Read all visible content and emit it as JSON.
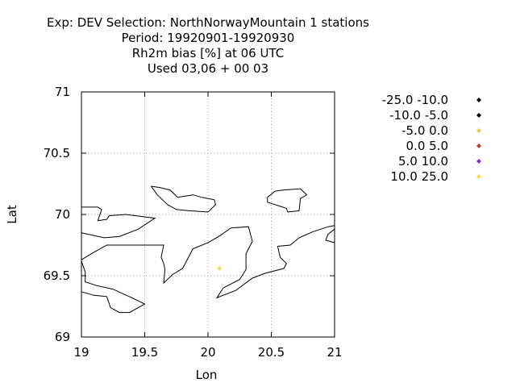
{
  "title_lines": [
    "Exp: DEV   Selection: NorthNorwayMountain       1 stations",
    "Period: 19920901-19920930",
    "Rh2m bias [%] at  06 UTC",
    "Used  03,06  + 00 03"
  ],
  "axes": {
    "xlabel": "Lon",
    "ylabel": "Lat",
    "xlim": [
      19,
      21
    ],
    "ylim": [
      69,
      71
    ],
    "xticks": [
      "19",
      "19.5",
      "20",
      "20.5",
      "21"
    ],
    "yticks": [
      "69",
      "69.5",
      "70",
      "70.5",
      "71"
    ],
    "grid": true
  },
  "legend": {
    "placement": "right",
    "items": [
      {
        "label": "-25.0 -10.0",
        "color": "#000000"
      },
      {
        "label": "-10.0 -5.0",
        "color": "#000000"
      },
      {
        "label": "-5.0 0.0",
        "color": "#f5c542"
      },
      {
        "label": "0.0 5.0",
        "color": "#c0392b"
      },
      {
        "label": "5.0 10.0",
        "color": "#7b2fd0"
      },
      {
        "label": "10.0 25.0",
        "color": "#f0e050"
      }
    ]
  },
  "chart_data": {
    "type": "scatter",
    "xlabel": "Lon",
    "ylabel": "Lat",
    "xlim": [
      19,
      21
    ],
    "ylim": [
      69,
      71
    ],
    "points": [
      {
        "lon": 20.09,
        "lat": 69.56,
        "class": "10.0 25.0",
        "color": "#f0e050"
      }
    ],
    "coastlines": [
      [
        [
          19.0,
          70.06
        ],
        [
          19.13,
          70.06
        ],
        [
          19.16,
          70.04
        ],
        [
          19.13,
          69.95
        ],
        [
          19.2,
          69.96
        ],
        [
          19.22,
          69.99
        ],
        [
          19.35,
          70.0
        ],
        [
          19.58,
          69.97
        ],
        [
          19.45,
          69.88
        ],
        [
          19.3,
          69.82
        ],
        [
          19.18,
          69.81
        ],
        [
          19.0,
          69.85
        ]
      ],
      [
        [
          19.55,
          70.23
        ],
        [
          19.62,
          70.22
        ],
        [
          19.7,
          70.2
        ],
        [
          19.76,
          70.14
        ],
        [
          19.82,
          70.15
        ],
        [
          19.88,
          70.16
        ],
        [
          19.95,
          70.14
        ],
        [
          20.05,
          70.12
        ],
        [
          20.06,
          70.08
        ],
        [
          20.0,
          70.02
        ],
        [
          19.85,
          70.03
        ],
        [
          19.75,
          70.04
        ],
        [
          19.68,
          70.08
        ],
        [
          19.6,
          70.16
        ],
        [
          19.55,
          70.23
        ]
      ],
      [
        [
          20.47,
          70.14
        ],
        [
          20.53,
          70.19
        ],
        [
          20.6,
          70.2
        ],
        [
          20.73,
          70.21
        ],
        [
          20.78,
          70.16
        ],
        [
          20.73,
          70.13
        ],
        [
          20.72,
          70.03
        ],
        [
          20.63,
          70.02
        ],
        [
          20.62,
          70.05
        ],
        [
          20.53,
          70.08
        ],
        [
          20.47,
          70.1
        ],
        [
          20.47,
          70.14
        ]
      ],
      [
        [
          19.0,
          69.63
        ],
        [
          19.08,
          69.68
        ],
        [
          19.2,
          69.75
        ],
        [
          19.4,
          69.75
        ],
        [
          19.65,
          69.75
        ],
        [
          19.63,
          69.65
        ],
        [
          19.65,
          69.6
        ],
        [
          19.66,
          69.55
        ],
        [
          19.65,
          69.44
        ],
        [
          19.72,
          69.51
        ],
        [
          19.8,
          69.56
        ],
        [
          19.88,
          69.72
        ],
        [
          20.0,
          69.77
        ],
        [
          20.1,
          69.83
        ],
        [
          20.18,
          69.89
        ],
        [
          20.32,
          69.9
        ],
        [
          20.35,
          69.78
        ],
        [
          20.3,
          69.68
        ],
        [
          20.3,
          69.55
        ],
        [
          20.25,
          69.47
        ],
        [
          20.12,
          69.4
        ],
        [
          20.07,
          69.32
        ],
        [
          20.22,
          69.38
        ],
        [
          20.35,
          69.48
        ],
        [
          20.45,
          69.52
        ],
        [
          20.6,
          69.56
        ],
        [
          20.62,
          69.6
        ],
        [
          20.57,
          69.65
        ],
        [
          20.55,
          69.74
        ],
        [
          20.65,
          69.75
        ],
        [
          20.72,
          69.81
        ],
        [
          20.83,
          69.86
        ],
        [
          20.95,
          69.9
        ],
        [
          21.0,
          69.91
        ]
      ],
      [
        [
          19.0,
          69.62
        ],
        [
          19.03,
          69.53
        ],
        [
          19.03,
          69.45
        ],
        [
          19.12,
          69.42
        ],
        [
          19.25,
          69.39
        ],
        [
          19.4,
          69.32
        ],
        [
          19.5,
          69.27
        ],
        [
          19.38,
          69.2
        ],
        [
          19.3,
          69.2
        ],
        [
          19.23,
          69.24
        ],
        [
          19.2,
          69.33
        ],
        [
          19.1,
          69.34
        ],
        [
          19.0,
          69.37
        ]
      ],
      [
        [
          21.0,
          69.88
        ],
        [
          20.95,
          69.84
        ],
        [
          20.93,
          69.79
        ],
        [
          21.0,
          69.77
        ]
      ]
    ]
  }
}
